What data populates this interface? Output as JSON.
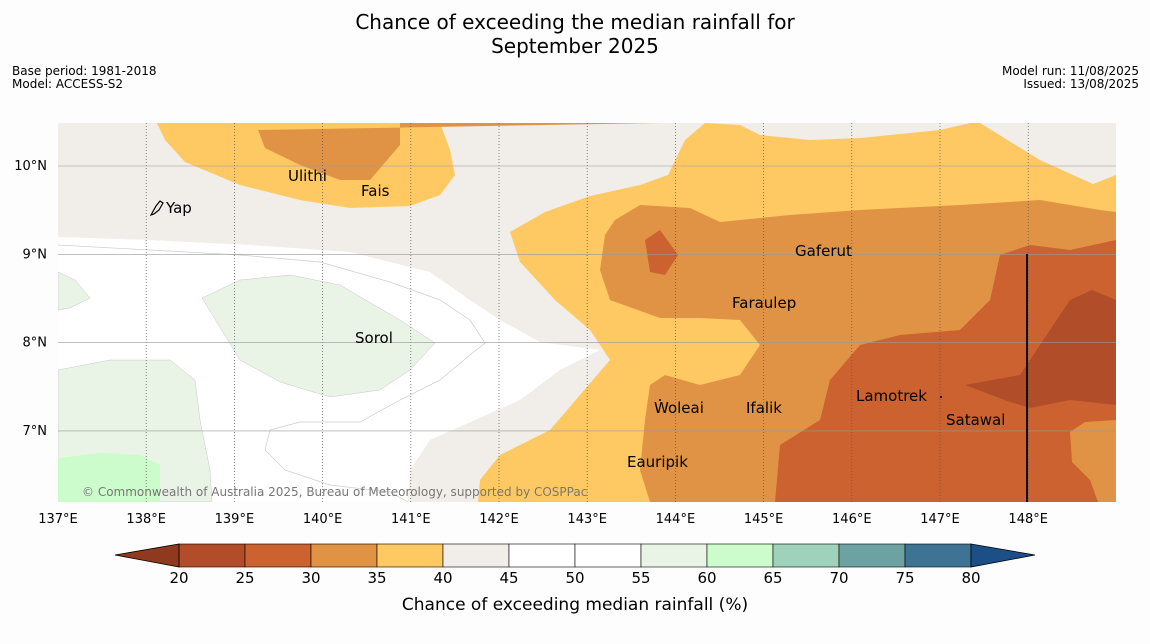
{
  "title": {
    "line1": "Chance of exceeding the median rainfall for",
    "line2": "September 2025"
  },
  "meta": {
    "base_period": "Base period: 1981-2018",
    "model": "Model: ACCESS-S2",
    "model_run": "Model run: 11/08/2025",
    "issued": "Issued: 13/08/2025"
  },
  "map": {
    "lon_labels": [
      "137°E",
      "138°E",
      "139°E",
      "140°E",
      "141°E",
      "142°E",
      "143°E",
      "144°E",
      "145°E",
      "146°E",
      "147°E",
      "148°E"
    ],
    "lat_labels": [
      "10°N",
      "9°N",
      "8°N",
      "7°N"
    ],
    "places": [
      {
        "name": "Ulithi"
      },
      {
        "name": "Fais"
      },
      {
        "name": "Yap"
      },
      {
        "name": "Gaferut"
      },
      {
        "name": "Faraulep"
      },
      {
        "name": "Sorol"
      },
      {
        "name": "Woleai"
      },
      {
        "name": "Ifalik"
      },
      {
        "name": "Lamotrek"
      },
      {
        "name": "Satawal"
      },
      {
        "name": "Eauripik"
      }
    ],
    "attribution": "© Commonwealth of Australia 2025, Bureau of Meteorology, supported by COSPPac"
  },
  "colorbar": {
    "title": "Chance of exceeding median rainfall (%)",
    "ticks": [
      "20",
      "25",
      "30",
      "35",
      "40",
      "45",
      "50",
      "55",
      "60",
      "65",
      "70",
      "75",
      "80"
    ],
    "colors": [
      "#b24d29",
      "#cb622f",
      "#e09345",
      "#fec962",
      "#f1ede8",
      "#ffffff",
      "#ffffff",
      "#e9f4e7",
      "#ccfbcc",
      "#9fd2bb",
      "#6da2a3",
      "#3f7393"
    ],
    "under_color": "#8f3a1e",
    "over_color": "#1c4f86"
  }
}
